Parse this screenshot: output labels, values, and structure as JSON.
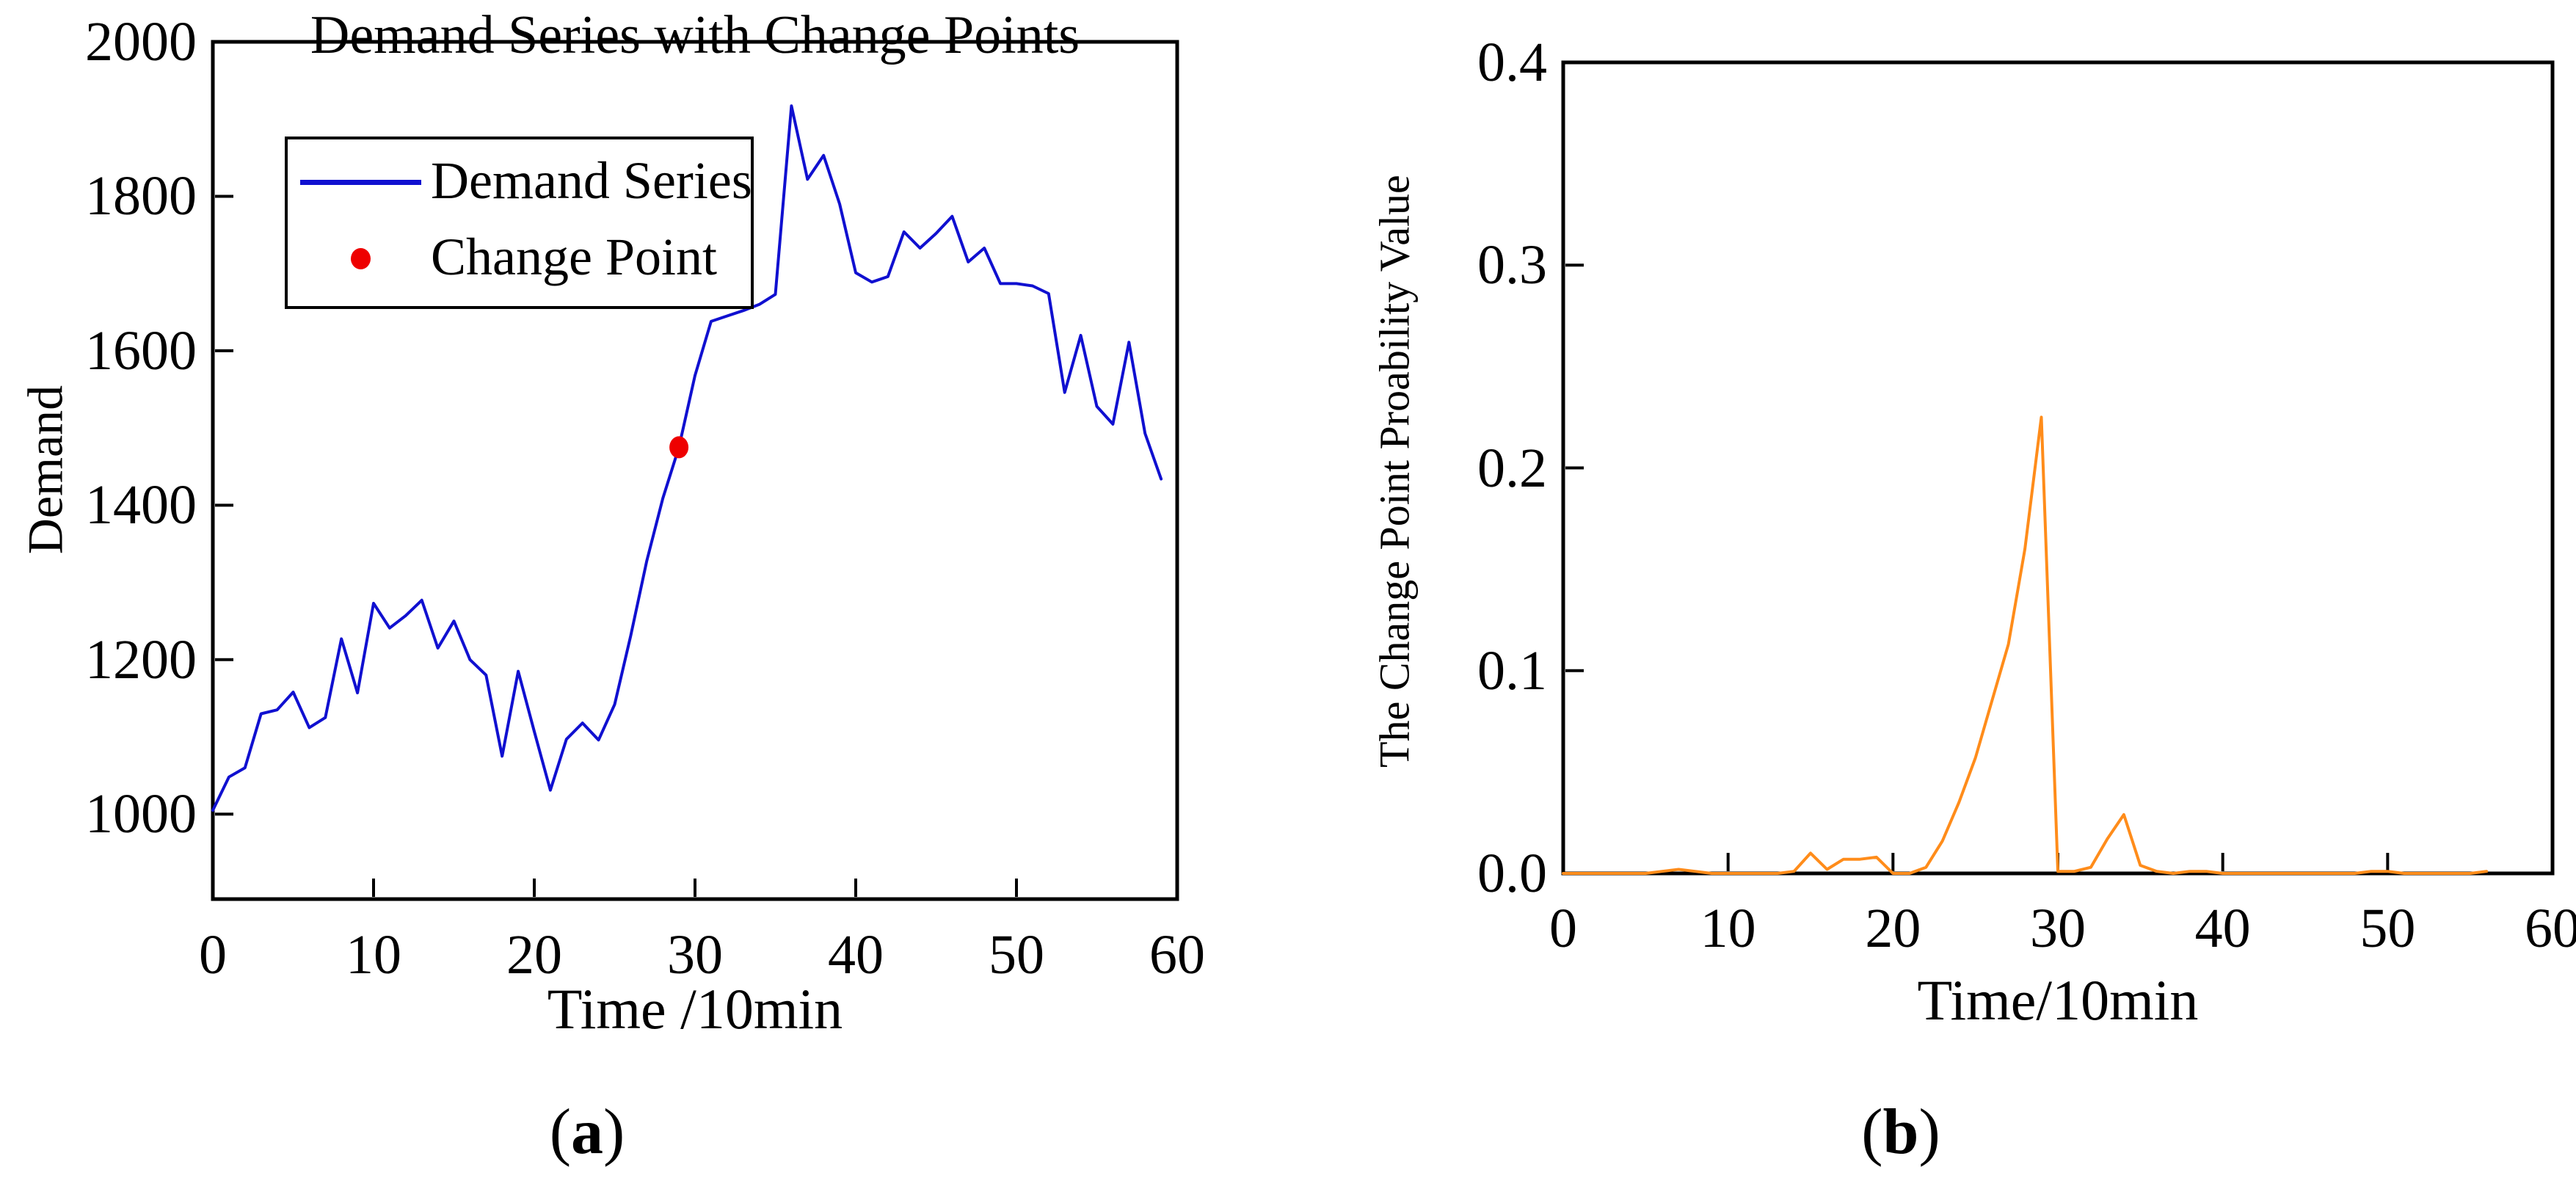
{
  "captions": {
    "a": {
      "open": "(",
      "letter": "a",
      "close": ")"
    },
    "b": {
      "open": "(",
      "letter": "b",
      "close": ")"
    }
  },
  "colors": {
    "demand_line": "#1010d0",
    "change_point": "#ee0000",
    "probability_line": "#ff8c1a",
    "axis": "#000000"
  },
  "chart_data": [
    {
      "id": "demand",
      "type": "line",
      "title": "Demand Series with Change Points",
      "xlabel": "Time /10min",
      "ylabel": "Demand",
      "xlim": [
        0,
        60
      ],
      "ylim": [
        890,
        2000
      ],
      "grid": false,
      "x_ticks": [
        {
          "value": 0,
          "label": "0"
        },
        {
          "value": 10,
          "label": "10"
        },
        {
          "value": 20,
          "label": "20"
        },
        {
          "value": 30,
          "label": "30"
        },
        {
          "value": 40,
          "label": "40"
        },
        {
          "value": 50,
          "label": "50"
        },
        {
          "value": 60,
          "label": "60"
        }
      ],
      "y_ticks": [
        {
          "value": 1000,
          "label": "1000"
        },
        {
          "value": 1200,
          "label": "1200"
        },
        {
          "value": 1400,
          "label": "1400"
        },
        {
          "value": 1600,
          "label": "1600"
        },
        {
          "value": 1800,
          "label": "1800"
        },
        {
          "value": 2000,
          "label": "2000"
        }
      ],
      "legend": {
        "position": "upper-left",
        "entries": [
          {
            "label": "Demand Series",
            "marker": "line",
            "color": "#1010d0"
          },
          {
            "label": "Change Point",
            "marker": "dot",
            "color": "#ee0000"
          }
        ]
      },
      "series": [
        {
          "name": "Demand Series",
          "color": "#1010d0",
          "x_start": 0,
          "x_step": 1,
          "values": [
            1005,
            1048,
            1060,
            1130,
            1135,
            1158,
            1112,
            1125,
            1227,
            1157,
            1273,
            1241,
            1257,
            1277,
            1215,
            1250,
            1200,
            1180,
            1075,
            1185,
            1107,
            1031,
            1097,
            1118,
            1096,
            1142,
            1231,
            1328,
            1409,
            1475,
            1568,
            1638,
            1645,
            1652,
            1660,
            1673,
            1917,
            1822,
            1853,
            1790,
            1701,
            1689,
            1696,
            1754,
            1733,
            1752,
            1774,
            1715,
            1733,
            1687,
            1687,
            1684,
            1674,
            1546,
            1620,
            1528,
            1505,
            1611,
            1493,
            1434
          ]
        }
      ],
      "markers": [
        {
          "name": "Change Point",
          "x": 29,
          "value": 1475,
          "color": "#ee0000"
        }
      ]
    },
    {
      "id": "probability",
      "type": "line",
      "title": "",
      "xlabel": "Time/10min",
      "ylabel": "The Change Point Proability Value",
      "xlim": [
        0,
        60
      ],
      "ylim": [
        0,
        0.4
      ],
      "grid": false,
      "x_ticks": [
        {
          "value": 0,
          "label": "0"
        },
        {
          "value": 10,
          "label": "10"
        },
        {
          "value": 20,
          "label": "20"
        },
        {
          "value": 30,
          "label": "30"
        },
        {
          "value": 40,
          "label": "40"
        },
        {
          "value": 50,
          "label": "50"
        },
        {
          "value": 60,
          "label": "60"
        }
      ],
      "y_ticks": [
        {
          "value": 0,
          "label": "0.0"
        },
        {
          "value": 0.1,
          "label": "0.1"
        },
        {
          "value": 0.2,
          "label": "0.2"
        },
        {
          "value": 0.3,
          "label": "0.3"
        },
        {
          "value": 0.4,
          "label": "0.4"
        }
      ],
      "legend": null,
      "series": [
        {
          "name": "Change Point Probability",
          "color": "#ff8c1a",
          "x_start": 0,
          "x_step": 1,
          "values": [
            0,
            0,
            0,
            0,
            0,
            0,
            0.001,
            0.002,
            0.001,
            0,
            0,
            0,
            0,
            0,
            0.001,
            0.01,
            0.002,
            0.007,
            0.007,
            0.008,
            0,
            0,
            0.003,
            0.016,
            0.035,
            0.057,
            0.085,
            0.113,
            0.16,
            0.225,
            0.001,
            0.001,
            0.003,
            0.017,
            0.029,
            0.004,
            0.001,
            0,
            0.001,
            0.001,
            0,
            0,
            0,
            0,
            0,
            0,
            0,
            0,
            0,
            0.001,
            0.001,
            0,
            0,
            0,
            0,
            0,
            0.001
          ]
        }
      ],
      "markers": []
    }
  ]
}
